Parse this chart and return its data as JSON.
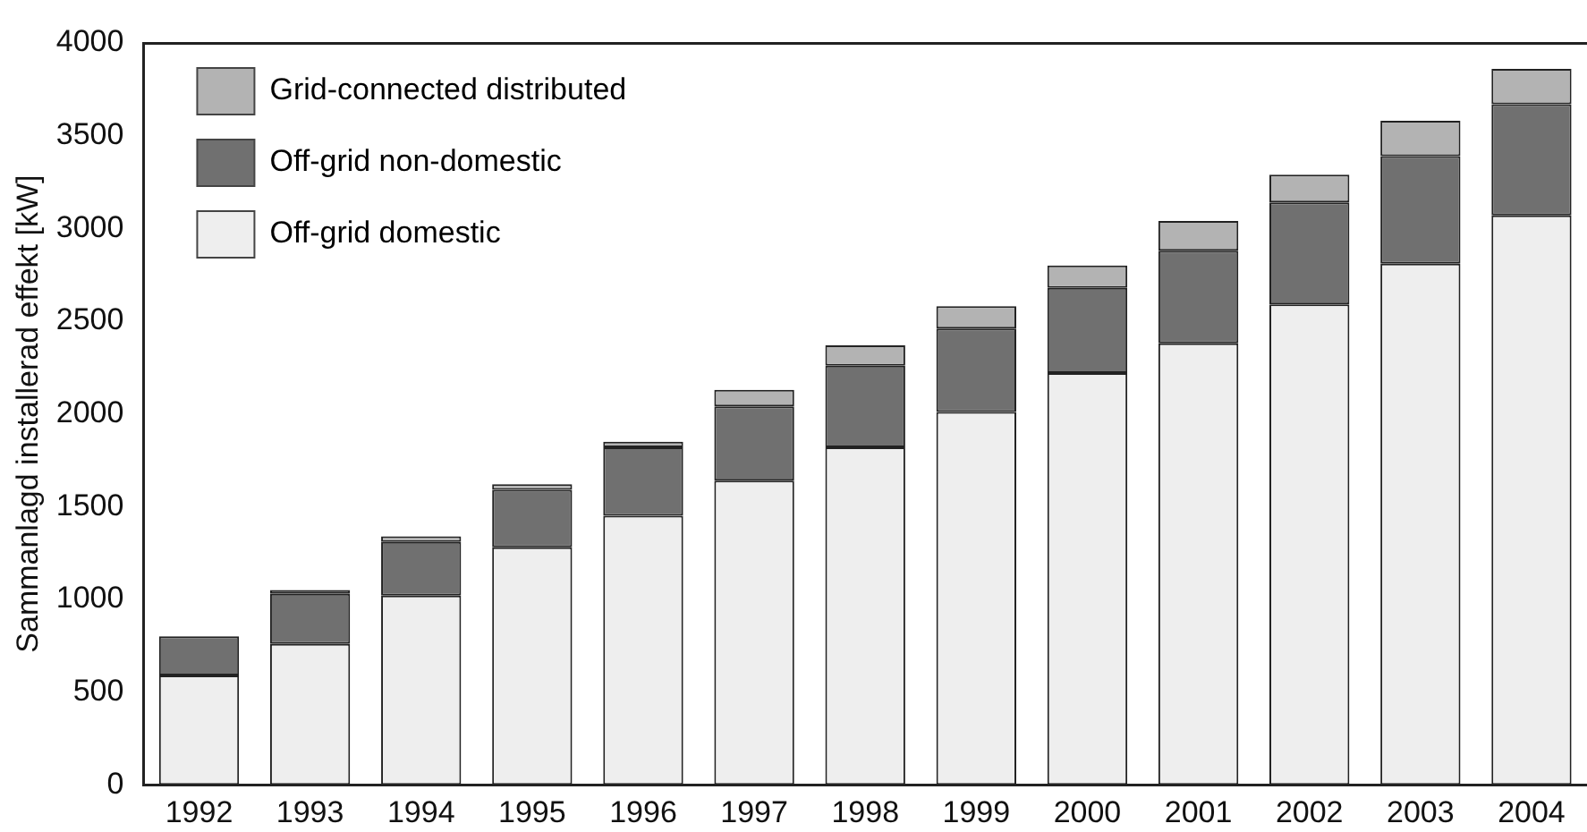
{
  "chart_data": {
    "type": "bar",
    "stacked": true,
    "ylabel": "Sammanlagd installerad effekt [kW]",
    "categories": [
      "1992",
      "1993",
      "1994",
      "1995",
      "1996",
      "1997",
      "1998",
      "1999",
      "2000",
      "2001",
      "2002",
      "2003",
      "2004"
    ],
    "series": [
      {
        "name": "Off-grid domestic",
        "color": "#eeeeee",
        "values": [
          590,
          760,
          1020,
          1280,
          1450,
          1640,
          1820,
          2010,
          2220,
          2380,
          2590,
          2810,
          3070
        ]
      },
      {
        "name": "Off-grid non-domestic",
        "color": "#707070",
        "values": [
          210,
          270,
          290,
          310,
          370,
          400,
          440,
          450,
          460,
          500,
          550,
          580,
          600
        ]
      },
      {
        "name": "Grid-connected distributed",
        "color": "#b3b3b3",
        "values": [
          null,
          20,
          30,
          30,
          30,
          90,
          110,
          120,
          120,
          160,
          150,
          190,
          190
        ]
      }
    ],
    "ylim": [
      0,
      4000
    ],
    "yticks": [
      0,
      500,
      1000,
      1500,
      2000,
      2500,
      3000,
      3500,
      4000
    ],
    "legend": "top left"
  }
}
